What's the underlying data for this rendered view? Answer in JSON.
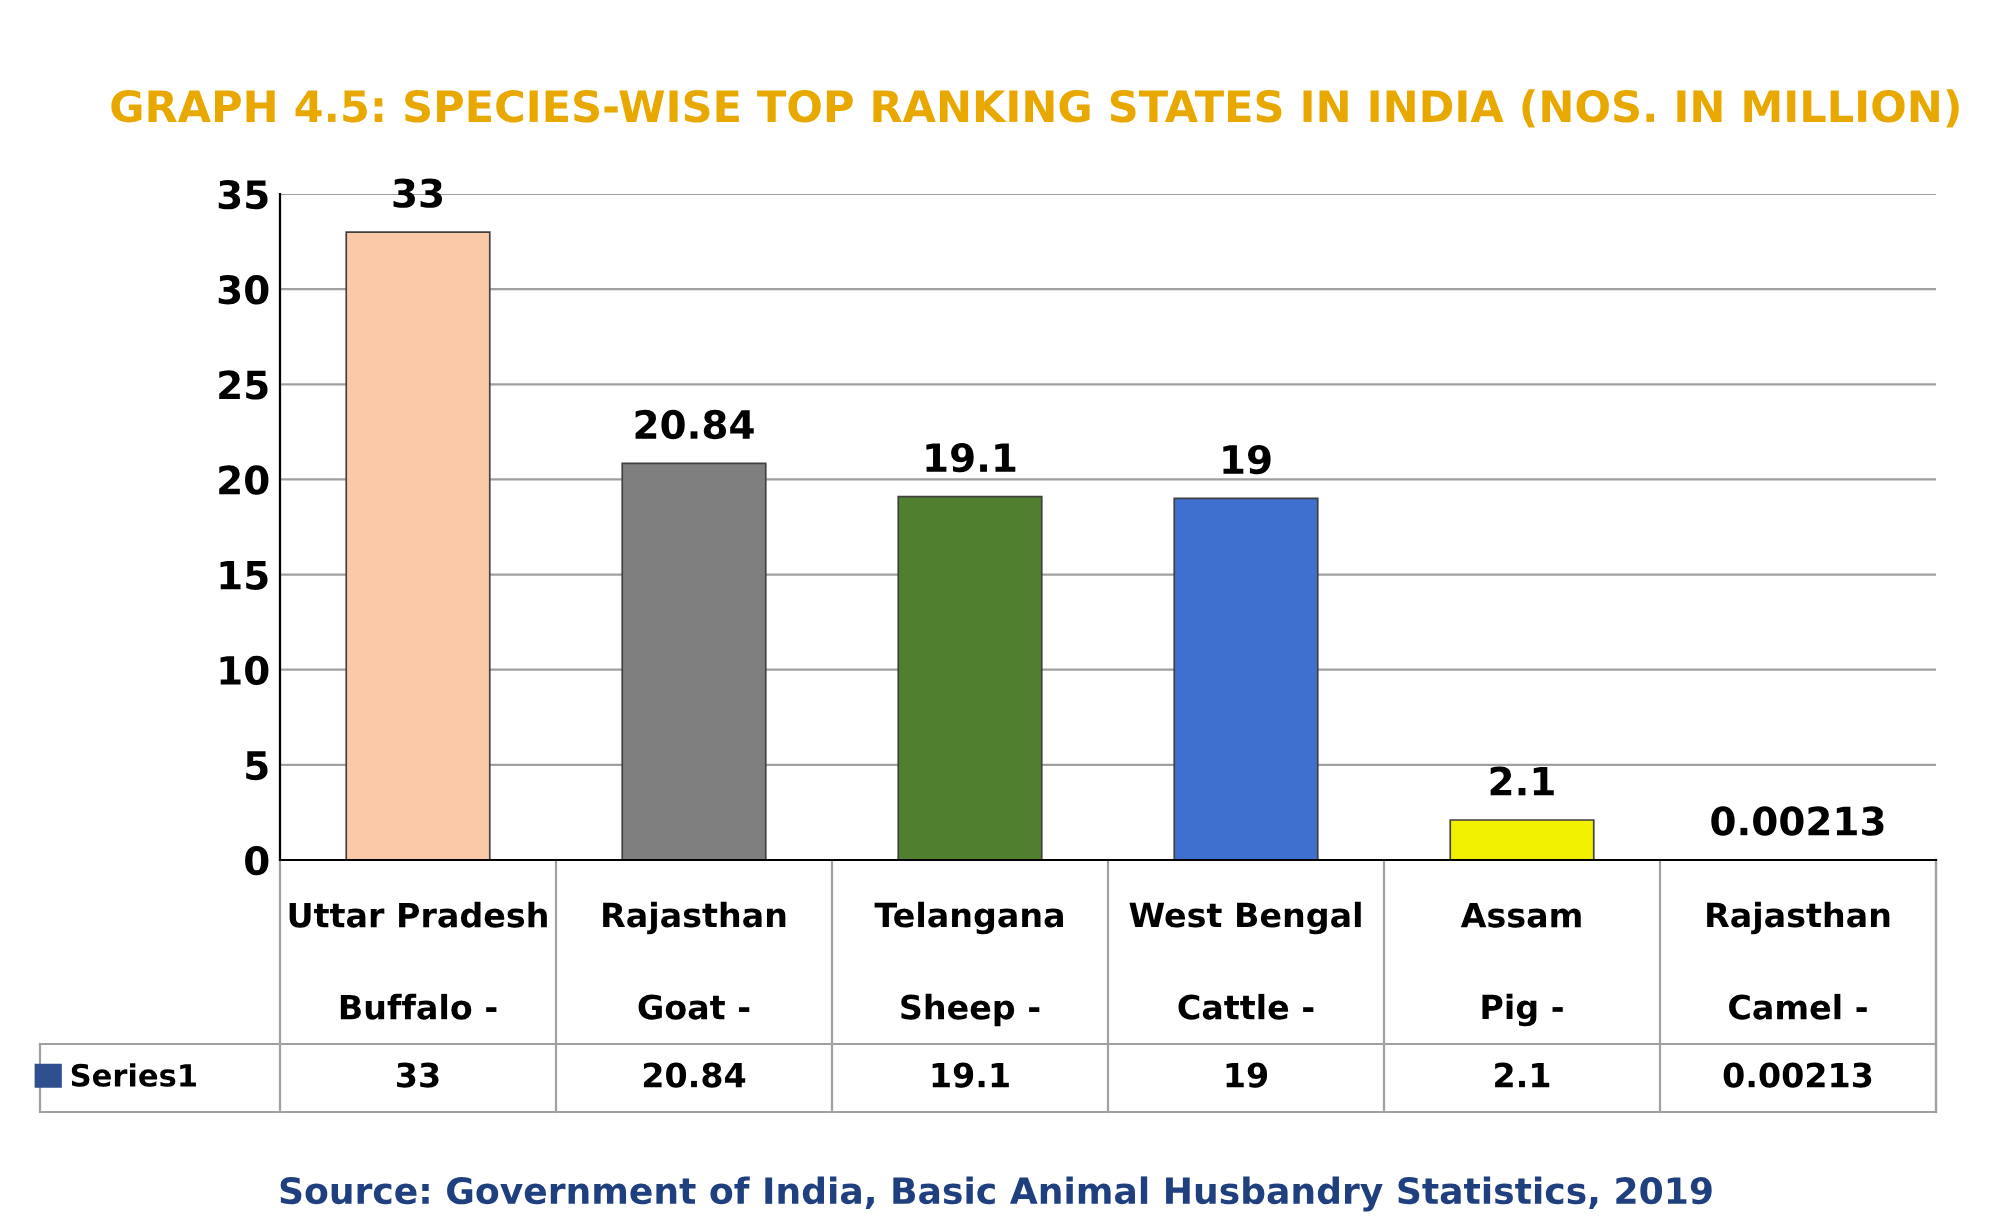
{
  "chart_data": {
    "type": "bar",
    "title": "GRAPH 4.5: SPECIES-WISE TOP RANKING STATES IN INDIA (NOS. IN MILLION)",
    "categories": [
      "Uttar Pradesh\nBuffalo -",
      "Rajasthan\nGoat -",
      "Telangana\nSheep -",
      "West Bengal\nCattle -",
      "Assam\nPig -",
      "Rajasthan\nCamel -"
    ],
    "series": [
      {
        "name": "Series1",
        "color": "#2f4f8f",
        "colors": [
          "#f9c9a8",
          "#7f7f7f",
          "#4f7f2f",
          "#3f6fcf",
          "#f0f000",
          "#c0504d"
        ],
        "values": [
          33,
          20.84,
          19.1,
          19,
          2.1,
          0.00213
        ],
        "value_labels": [
          "33",
          "20.84",
          "19.1",
          "19",
          "2.1",
          "0.00213"
        ]
      }
    ],
    "ylim": [
      0,
      35
    ],
    "yticks": [
      0,
      5,
      10,
      15,
      20,
      25,
      30,
      35
    ],
    "grid": "y",
    "legend": "bottom left",
    "annotations": [
      "Source: Government of India, Basic Animal Husbandry Statistics, 2019",
      "33",
      "20.84",
      "19.1",
      "19",
      "2.1",
      "0.00213"
    ]
  }
}
